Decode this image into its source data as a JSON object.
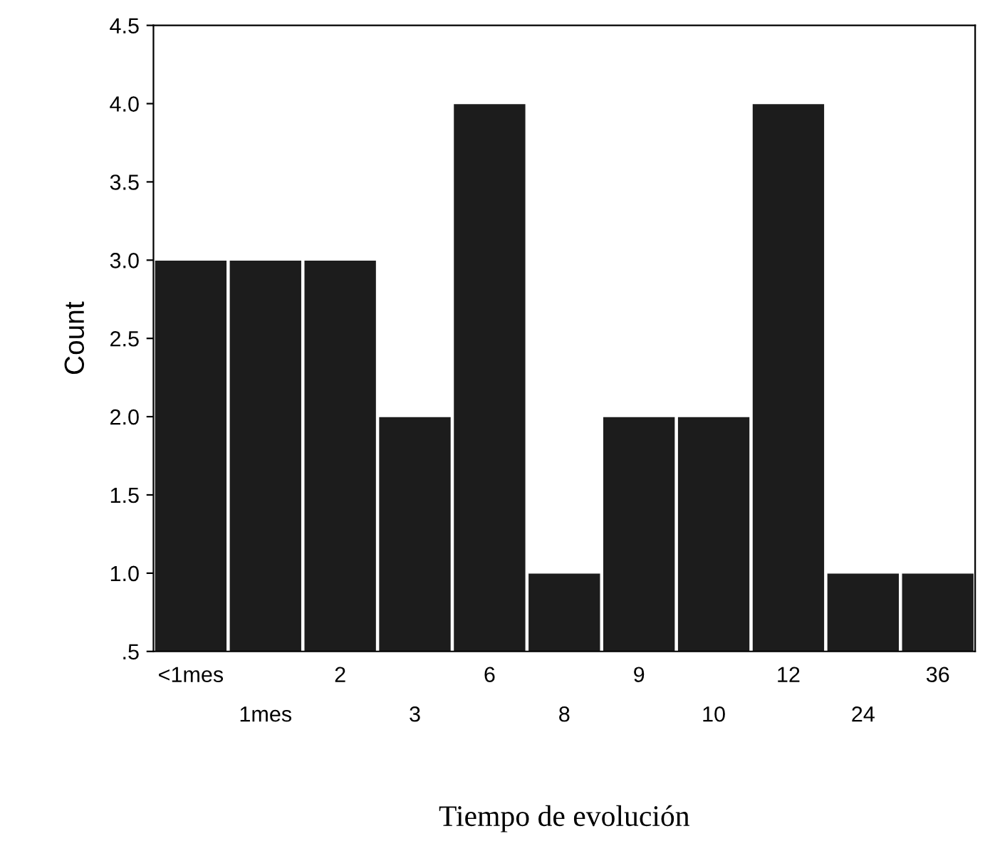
{
  "chart_data": {
    "type": "bar",
    "xlabel": "Tiempo de evolución",
    "ylabel": "Count",
    "categories": [
      "<1mes",
      "1mes",
      "2",
      "3",
      "6",
      "8",
      "9",
      "10",
      "12",
      "24",
      "36"
    ],
    "values": [
      3,
      3,
      3,
      2,
      4,
      1,
      2,
      2,
      4,
      1,
      1
    ],
    "color": "#1c1c1c",
    "ylim": [
      0.5,
      4.5
    ],
    "yticks": [
      {
        "value": 0.5,
        "label": ".5"
      },
      {
        "value": 1.0,
        "label": "1.0"
      },
      {
        "value": 1.5,
        "label": "1.5"
      },
      {
        "value": 2.0,
        "label": "2.0"
      },
      {
        "value": 2.5,
        "label": "2.5"
      },
      {
        "value": 3.0,
        "label": "3.0"
      },
      {
        "value": 3.5,
        "label": "3.5"
      },
      {
        "value": 4.0,
        "label": "4.0"
      },
      {
        "value": 4.5,
        "label": "4.5"
      }
    ],
    "grid": false
  }
}
